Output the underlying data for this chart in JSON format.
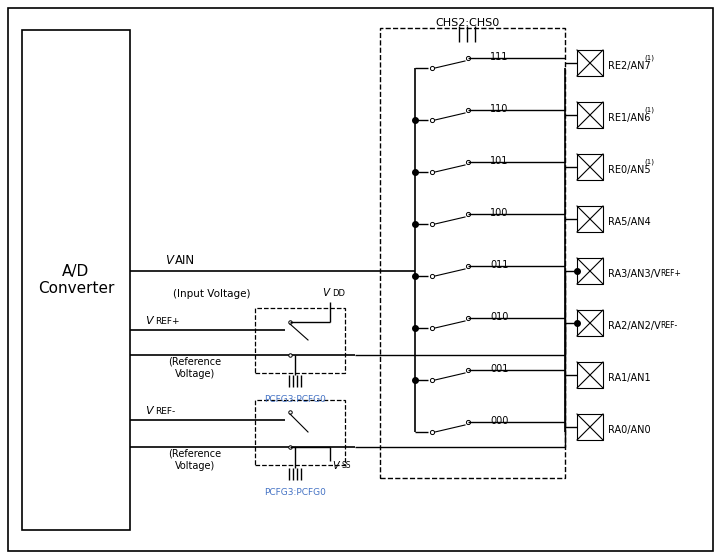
{
  "bg_color": "#ffffff",
  "line_color": "#000000",
  "text_color": "#000000",
  "blue_text": "#4472c4",
  "fig_width": 7.21,
  "fig_height": 5.59,
  "dpi": 100,
  "channels": [
    "111",
    "110",
    "101",
    "100",
    "011",
    "010",
    "001",
    "000"
  ],
  "pin_labels": [
    "RE2/AN7",
    "RE1/AN6",
    "RE0/AN5",
    "RA5/AN4",
    "RA3/AN3/VREF+",
    "RA2/AN2/VREF-",
    "RA1/AN1",
    "RA0/AN0"
  ],
  "pin_superscripts": [
    "(1)",
    "(1)",
    "(1)",
    "",
    "",
    "",
    "",
    ""
  ],
  "pcfg_label": "PCFG3:PCFG0",
  "chs_label": "CHS2:CHS0",
  "ad_converter_label": "A/D\nConverter"
}
